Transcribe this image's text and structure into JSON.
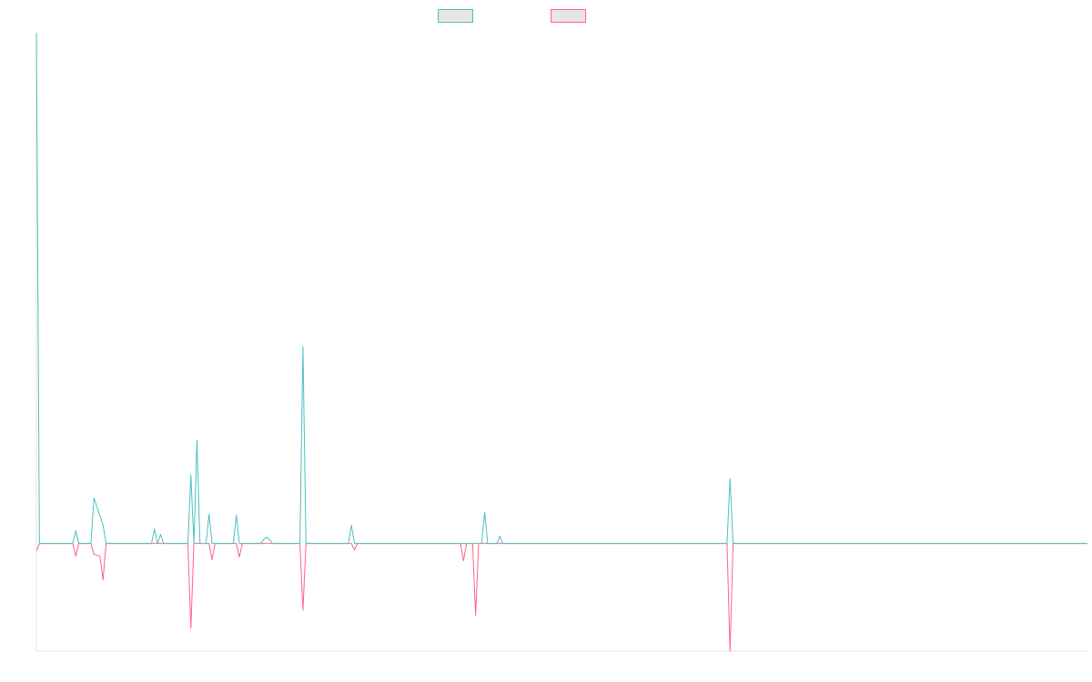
{
  "chart_data": {
    "type": "line",
    "title": "",
    "xlabel": "",
    "ylabel": "",
    "grid": false,
    "legend": "top-center",
    "x": [
      0,
      1,
      2,
      3,
      4,
      5,
      6,
      7,
      8,
      9,
      10,
      11,
      12,
      13,
      14,
      15,
      16,
      17,
      18,
      19,
      20,
      21,
      22,
      23,
      24,
      25,
      26,
      27,
      28,
      29,
      30,
      31,
      32,
      33,
      34,
      35,
      36,
      37,
      38,
      39,
      40,
      41,
      42,
      43,
      44,
      45,
      46,
      47,
      48,
      49,
      50,
      51,
      52,
      53,
      54,
      55,
      56,
      57,
      58,
      59,
      60,
      61,
      62,
      63,
      64,
      65,
      66,
      67,
      68,
      69,
      70,
      71,
      72,
      73,
      74,
      75,
      76,
      77,
      78,
      79,
      80,
      81,
      82,
      83,
      84,
      85,
      86,
      87,
      88,
      89,
      90,
      91,
      92,
      93,
      94,
      95,
      96,
      97,
      98,
      99,
      100,
      101,
      102,
      103,
      104,
      105,
      106,
      107,
      108,
      109,
      110,
      111,
      112,
      113,
      114,
      115,
      116,
      117,
      118,
      119,
      120,
      121,
      122,
      123,
      124,
      125,
      126,
      127,
      128,
      129,
      130,
      131,
      132,
      133,
      134,
      135,
      136,
      137,
      138,
      139,
      140,
      141,
      142,
      143,
      144,
      145,
      146,
      147,
      148,
      149,
      150,
      151,
      152,
      153,
      154,
      155,
      156,
      157,
      158,
      159,
      160,
      161,
      162,
      163,
      164,
      165,
      166,
      167,
      168,
      169,
      170,
      171,
      172,
      173,
      174,
      175,
      176,
      177,
      178,
      179,
      180,
      181,
      182,
      183,
      184,
      185,
      186,
      187,
      188,
      189,
      190,
      191,
      192,
      193,
      194,
      195,
      196,
      197,
      198,
      199,
      200,
      201,
      202,
      203,
      204,
      205,
      206,
      207,
      208,
      209,
      210,
      211,
      212,
      213,
      214,
      215,
      216,
      217,
      218,
      219,
      220,
      221,
      222,
      223,
      224,
      225,
      226,
      227,
      228,
      229,
      230,
      231,
      232,
      233,
      234,
      235,
      236,
      237,
      238,
      239,
      240,
      241,
      242,
      243,
      244,
      245,
      246,
      247,
      248,
      249,
      250,
      251,
      252,
      253,
      254,
      255,
      256,
      257,
      258,
      259,
      260,
      261,
      262,
      263,
      264,
      265,
      266,
      267,
      268,
      269,
      270,
      271,
      272,
      273,
      274,
      275,
      276,
      277,
      278,
      279,
      280,
      281,
      282,
      283,
      284,
      285,
      286,
      287,
      288,
      289,
      290,
      291,
      292,
      293,
      294,
      295,
      296,
      297,
      298,
      299,
      300,
      301,
      302,
      303,
      304,
      305,
      306,
      307,
      308,
      309,
      310,
      311,
      312,
      313,
      314,
      315,
      316,
      317,
      318,
      319,
      320,
      321,
      322,
      323,
      324,
      325,
      326,
      327,
      328,
      329,
      330,
      331,
      332,
      333,
      334,
      335,
      336,
      337,
      338,
      339,
      340,
      341,
      342,
      343,
      344,
      345,
      346,
      347
    ],
    "xlim": [
      0,
      347
    ],
    "ylim": [
      -118,
      560
    ],
    "series": [
      {
        "color": "#4bc0c0",
        "points": [
          [
            0,
            560
          ],
          [
            1,
            0
          ],
          [
            12,
            0
          ],
          [
            13,
            14
          ],
          [
            14,
            0
          ],
          [
            18,
            0
          ],
          [
            19,
            50
          ],
          [
            22,
            20
          ],
          [
            23,
            0
          ],
          [
            38,
            0
          ],
          [
            39,
            16
          ],
          [
            40,
            0
          ],
          [
            41,
            10
          ],
          [
            42,
            0
          ],
          [
            50,
            0
          ],
          [
            51,
            75
          ],
          [
            52,
            0
          ],
          [
            53,
            113
          ],
          [
            54,
            0
          ],
          [
            56,
            0
          ],
          [
            57,
            32
          ],
          [
            58,
            0
          ],
          [
            65,
            0
          ],
          [
            66,
            31
          ],
          [
            67,
            0
          ],
          [
            74,
            0
          ],
          [
            75,
            4
          ],
          [
            76,
            7
          ],
          [
            77,
            4
          ],
          [
            78,
            0
          ],
          [
            87,
            0
          ],
          [
            88,
            216
          ],
          [
            89,
            0
          ],
          [
            103,
            0
          ],
          [
            104,
            20
          ],
          [
            105,
            0
          ],
          [
            147,
            0
          ],
          [
            148,
            34
          ],
          [
            149,
            0
          ],
          [
            152,
            0
          ],
          [
            153,
            8
          ],
          [
            154,
            0
          ],
          [
            228,
            0
          ],
          [
            229,
            71
          ],
          [
            230,
            0
          ],
          [
            347,
            0
          ]
        ]
      },
      {
        "color": "#ff6384",
        "points": [
          [
            0,
            -8
          ],
          [
            1,
            0
          ],
          [
            12,
            0
          ],
          [
            13,
            -14
          ],
          [
            14,
            0
          ],
          [
            18,
            0
          ],
          [
            19,
            -12
          ],
          [
            21,
            -14
          ],
          [
            22,
            -40
          ],
          [
            23,
            0
          ],
          [
            50,
            0
          ],
          [
            51,
            -93
          ],
          [
            52,
            0
          ],
          [
            57,
            0
          ],
          [
            58,
            -18
          ],
          [
            59,
            0
          ],
          [
            66,
            0
          ],
          [
            67,
            -15
          ],
          [
            68,
            0
          ],
          [
            87,
            0
          ],
          [
            88,
            -73
          ],
          [
            89,
            0
          ],
          [
            104,
            0
          ],
          [
            105,
            -7
          ],
          [
            106,
            0
          ],
          [
            140,
            0
          ],
          [
            141,
            -19
          ],
          [
            142,
            0
          ],
          [
            144,
            0
          ],
          [
            145,
            -79
          ],
          [
            146,
            0
          ],
          [
            228,
            0
          ],
          [
            229,
            -118
          ],
          [
            230,
            0
          ],
          [
            347,
            0
          ]
        ]
      }
    ]
  }
}
